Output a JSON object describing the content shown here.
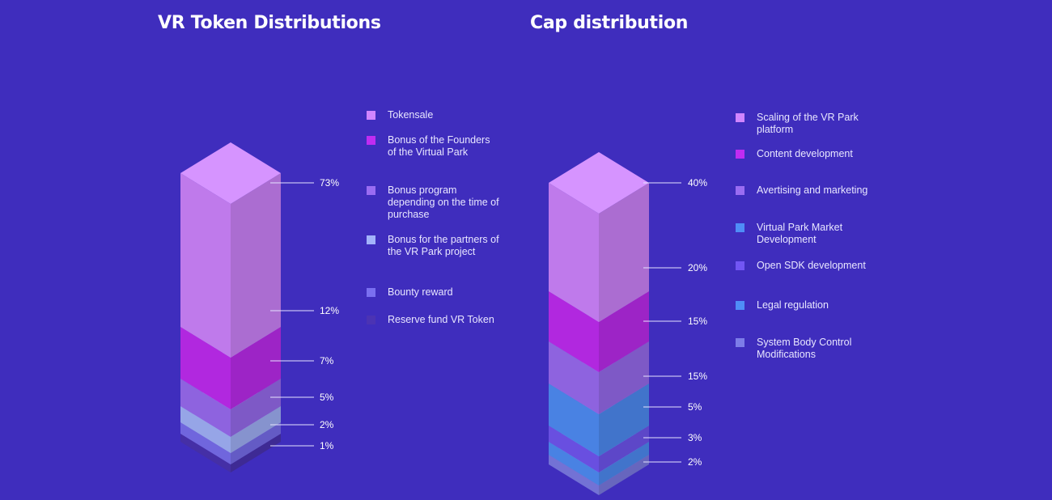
{
  "chart_data": [
    {
      "type": "stacked-isometric-bar",
      "title": "VR Token Distributions",
      "series": [
        {
          "name": "Tokensale",
          "value": 73,
          "label": "73%",
          "color": "#d085ff"
        },
        {
          "name": "Bonus of the Founders of the Virtual Park",
          "value": 12,
          "label": "12%",
          "color": "#c02cf2"
        },
        {
          "name": "Bonus program depending on  the time of purchase",
          "value": 7,
          "label": "7%",
          "color": "#9a6cf2"
        },
        {
          "name": "Bonus for the partners of the VR Park project",
          "value": 5,
          "label": "5%",
          "color": "#a3b3fb"
        },
        {
          "name": "Bounty reward",
          "value": 2,
          "label": "2%",
          "color": "#7a6ff0"
        },
        {
          "name": "Reserve fund VR Token",
          "value": 1,
          "label": "1%",
          "color": "#4b33b4"
        }
      ]
    },
    {
      "type": "stacked-isometric-bar",
      "title": "Cap distribution",
      "series": [
        {
          "name": "Scaling of the VR Park platform",
          "value": 40,
          "label": "40%",
          "color": "#d085ff"
        },
        {
          "name": "Content development",
          "value": 20,
          "label": "20%",
          "color": "#c02cf2"
        },
        {
          "name": "Avertising and marketing",
          "value": 15,
          "label": "15%",
          "color": "#9a6cf2"
        },
        {
          "name": "Virtual Park Market Development",
          "value": 15,
          "label": "15%",
          "color": "#4f8df7"
        },
        {
          "name": "Open SDK development",
          "value": 5,
          "label": "5%",
          "color": "#7256f4"
        },
        {
          "name": "Legal regulation",
          "value": 3,
          "label": "3%",
          "color": "#4f8df7"
        },
        {
          "name": "System Body Control Modifications",
          "value": 2,
          "label": "2%",
          "color": "#7d7ce8"
        }
      ]
    }
  ]
}
